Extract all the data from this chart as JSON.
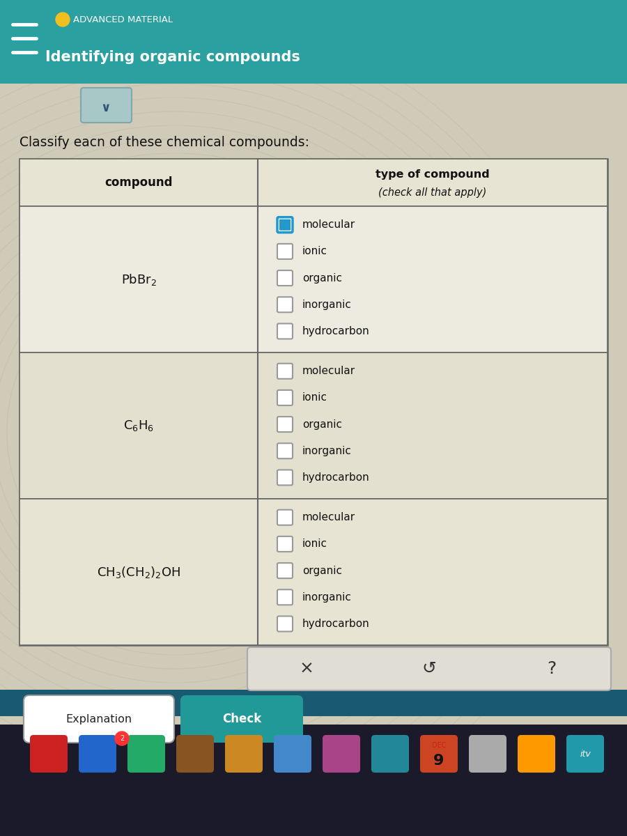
{
  "title": "Identifying organic compounds",
  "subtitle": "ADVANCED MATERIAL",
  "question": "Classify eacn of these chemical compounds:",
  "header_col1": "compound",
  "header_col2_line1": "type of compound",
  "header_col2_line2": "(check all that apply)",
  "compounds_latex": [
    "PbBr$_2$",
    "C$_6$H$_6$",
    "CH$_3$(CH$_2$)$_2$OH"
  ],
  "options": [
    "molecular",
    "ionic",
    "organic",
    "inorganic",
    "hydrocarbon"
  ],
  "checked_state": [
    [
      true,
      false,
      false,
      false,
      false
    ],
    [
      false,
      false,
      false,
      false,
      false
    ],
    [
      false,
      false,
      false,
      false,
      false
    ]
  ],
  "bg_outer": "#c8c8c8",
  "bg_photo": "#d4cfc0",
  "header_bg": "#2aa0a0",
  "header_text_color": "#ffffff",
  "table_header_bg": "#e8e4d4",
  "table_row0_bg": "#edeae0",
  "table_row1_bg": "#e4e0d0",
  "table_row2_bg": "#e8e4d4",
  "table_border": "#666666",
  "check_border_active": "#2299cc",
  "check_border_inactive": "#999999",
  "action_btn_bg": "#e0ddd5",
  "action_btn_border": "#aaaaaa",
  "check_btn_bg": "#229999",
  "expl_btn_bg": "#ffffff",
  "expl_btn_border": "#999999",
  "taskbar_bg": "#1a5a70",
  "dock_bg": "#2266880"
}
